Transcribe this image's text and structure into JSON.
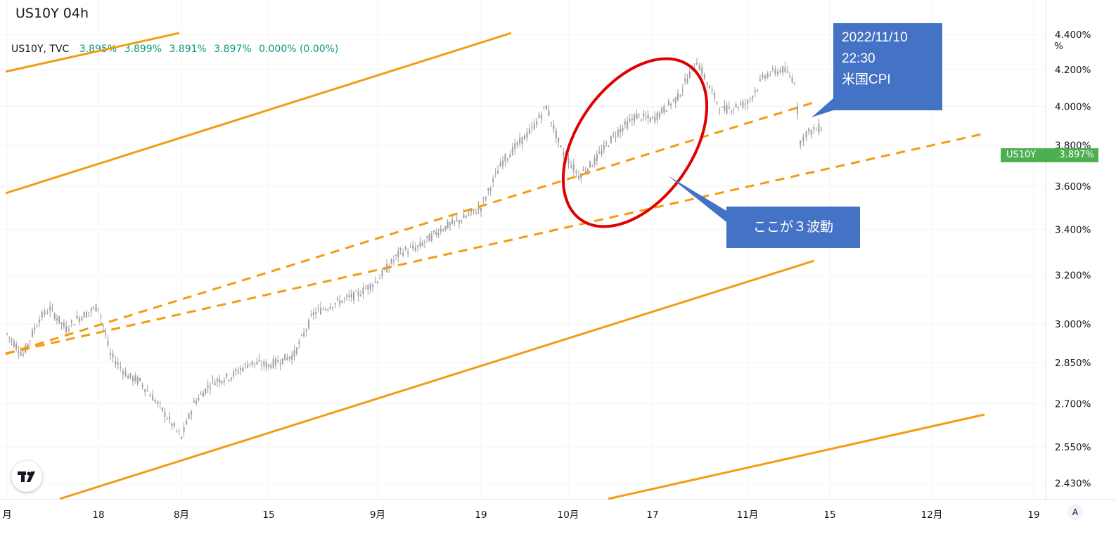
{
  "title": "US10Y 04h",
  "legend": {
    "symbol": "US10Y, TVC",
    "open": "3.895%",
    "high": "3.899%",
    "low": "3.891%",
    "close": "3.897%",
    "change": "0.000% (0.00%)"
  },
  "price_tag": {
    "symbol": "US10Y",
    "value": "3.897%"
  },
  "annotations": {
    "cpi": [
      "2022/11/10",
      "22:30",
      "米国CPI"
    ],
    "wave": "ここが３波動"
  },
  "colors": {
    "up": "#089981",
    "candles": "#9e9e9e",
    "channel": "#f39c12",
    "highlight": "#e00000",
    "callout": "#4472c4",
    "tag": "#4caf50"
  },
  "icons": {
    "logo": "tradingview-logo-icon",
    "auto": "auto-scale-icon"
  },
  "chart_data": {
    "type": "line",
    "interval": "4h",
    "unit": "%",
    "y_ticks": [
      "4.400%",
      "4.200%",
      "4.000%",
      "3.800%",
      "3.600%",
      "3.400%",
      "3.200%",
      "3.000%",
      "2.850%",
      "2.700%",
      "2.550%",
      "2.430%"
    ],
    "y_tick_values": [
      4.4,
      4.2,
      4.0,
      3.8,
      3.6,
      3.4,
      3.2,
      3.0,
      2.85,
      2.7,
      2.55,
      2.43
    ],
    "x_ticks": [
      "月",
      "18",
      "8月",
      "15",
      "9月",
      "19",
      "10月",
      "17",
      "11月",
      "15",
      "12月",
      "19"
    ],
    "x_tick_dates": [
      "2022-07-01",
      "2022-07-18",
      "2022-08-01",
      "2022-08-15",
      "2022-09-01",
      "2022-09-19",
      "2022-10-01",
      "2022-10-17",
      "2022-11-01",
      "2022-11-15",
      "2022-12-01",
      "2022-12-19"
    ],
    "ylim": [
      2.38,
      4.52
    ],
    "log_scale": true,
    "series": [
      {
        "x": [
          "2022-07-01",
          "2022-07-04",
          "2022-07-07",
          "2022-07-09",
          "2022-07-12",
          "2022-07-14",
          "2022-07-18",
          "2022-07-20",
          "2022-07-23",
          "2022-07-25",
          "2022-07-28",
          "2022-08-01",
          "2022-08-03",
          "2022-08-06",
          "2022-08-09",
          "2022-08-12",
          "2022-08-15",
          "2022-08-19",
          "2022-08-22",
          "2022-08-25",
          "2022-08-29",
          "2022-09-01",
          "2022-09-05",
          "2022-09-08",
          "2022-09-12",
          "2022-09-16",
          "2022-09-19",
          "2022-09-22",
          "2022-09-26",
          "2022-09-28",
          "2022-09-30",
          "2022-10-03",
          "2022-10-06",
          "2022-10-10",
          "2022-10-14",
          "2022-10-17",
          "2022-10-21",
          "2022-10-24",
          "2022-10-26",
          "2022-10-28",
          "2022-11-01",
          "2022-11-04",
          "2022-11-07",
          "2022-11-09",
          "2022-11-10",
          "2022-11-11",
          "2022-11-14"
        ],
        "y": [
          2.96,
          2.88,
          3.02,
          3.06,
          2.98,
          3.02,
          3.07,
          2.88,
          2.8,
          2.78,
          2.7,
          2.58,
          2.7,
          2.78,
          2.8,
          2.85,
          2.84,
          2.88,
          3.04,
          3.08,
          3.12,
          3.18,
          3.3,
          3.32,
          3.4,
          3.45,
          3.5,
          3.72,
          3.88,
          4.0,
          3.78,
          3.65,
          3.72,
          3.86,
          3.95,
          3.93,
          4.05,
          4.25,
          4.1,
          3.98,
          4.02,
          4.17,
          4.2,
          4.14,
          3.82,
          3.86,
          3.897
        ]
      }
    ]
  }
}
